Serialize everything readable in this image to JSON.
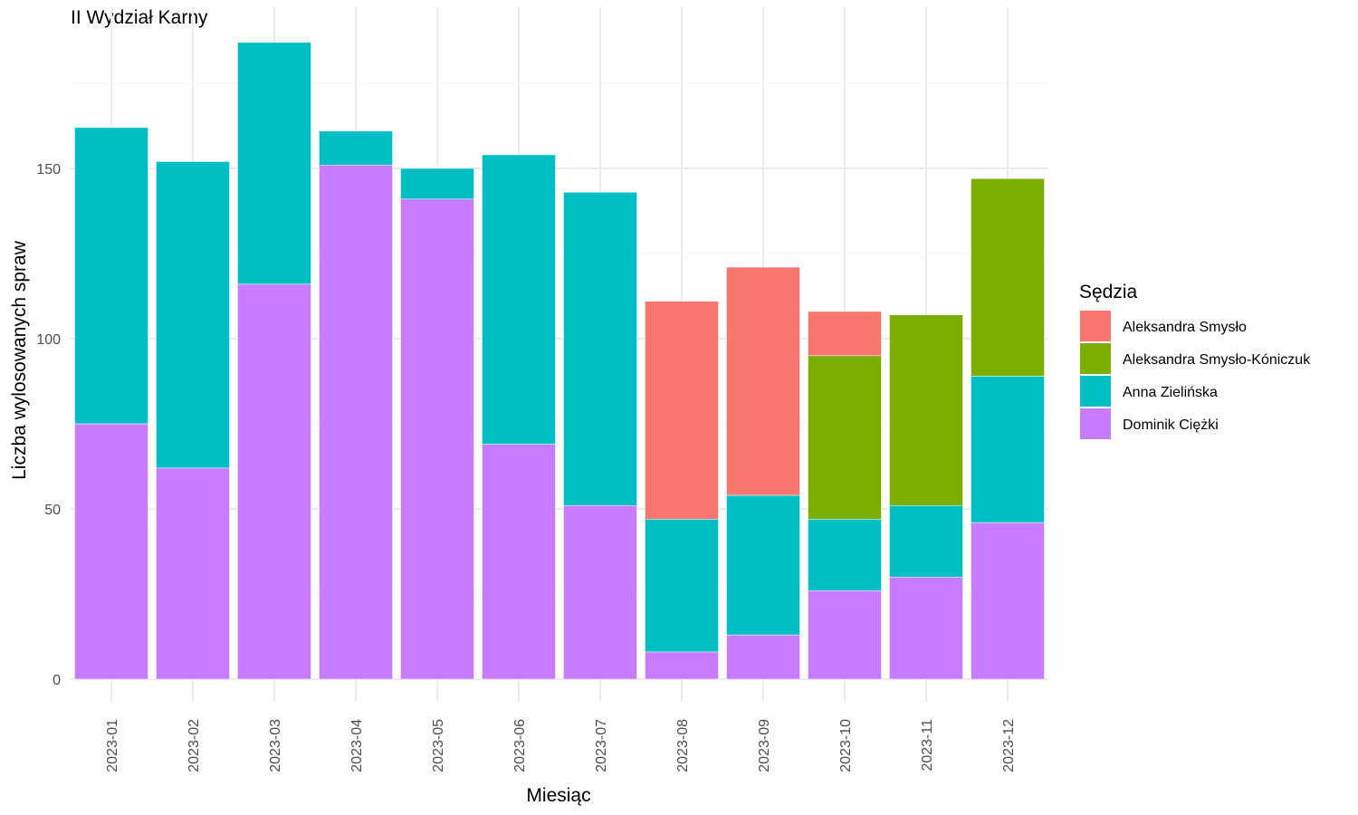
{
  "chart_data": {
    "type": "bar",
    "stacked": true,
    "title": "II Wydział Karny",
    "xlabel": "Miesiąc",
    "ylabel": "Liczba wylosowanych spraw",
    "ylim": [
      0,
      190
    ],
    "yticks": [
      0,
      50,
      100,
      150
    ],
    "grid": true,
    "legend_position": "right",
    "legend_title": "Sędzia",
    "categories": [
      "2023-01",
      "2023-02",
      "2023-03",
      "2023-04",
      "2023-05",
      "2023-06",
      "2023-07",
      "2023-08",
      "2023-09",
      "2023-10",
      "2023-11",
      "2023-12"
    ],
    "series": [
      {
        "name": "Dominik Ciężki",
        "color": "#C77CFF",
        "values": [
          75,
          62,
          116,
          151,
          141,
          69,
          51,
          8,
          13,
          26,
          30,
          46
        ]
      },
      {
        "name": "Anna Zielińska",
        "color": "#00BFC4",
        "values": [
          87,
          90,
          71,
          10,
          9,
          85,
          92,
          39,
          41,
          21,
          21,
          43
        ]
      },
      {
        "name": "Aleksandra Smysło-Kóniczuk",
        "color": "#7CAE00",
        "values": [
          0,
          0,
          0,
          0,
          0,
          0,
          0,
          0,
          0,
          48,
          56,
          58
        ]
      },
      {
        "name": "Aleksandra Smysło",
        "color": "#F8766D",
        "values": [
          0,
          0,
          0,
          0,
          0,
          0,
          0,
          64,
          67,
          13,
          0,
          0
        ]
      }
    ],
    "legend_order": [
      "Aleksandra Smysło",
      "Aleksandra Smysło-Kóniczuk",
      "Anna Zielińska",
      "Dominik Ciężki"
    ]
  }
}
